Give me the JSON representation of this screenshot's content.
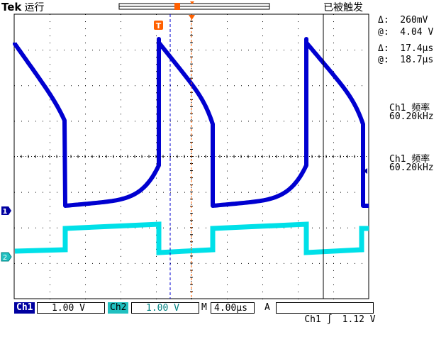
{
  "header": {
    "brand": "Tek",
    "run_state": "运行",
    "trigger_state": "已被触发"
  },
  "cursor_readouts": {
    "amplitude_delta": "Δ:  260mV",
    "amplitude_at": "@:  4.04 V",
    "time_delta": "Δ:  17.4µs",
    "time_at": "@:  18.7µs"
  },
  "measurements": [
    {
      "label": "Ch1 频率",
      "value": "60.20kHz"
    },
    {
      "label": "Ch1 频率",
      "value": "60.20kHz"
    }
  ],
  "channel_markers": {
    "ch1": "1",
    "ch2": "2",
    "trigger": "T"
  },
  "bottom": {
    "ch1_label": "Ch1",
    "ch1_scale": "1.00 V",
    "ch2_label": "Ch2",
    "ch2_scale": "1.00 V",
    "horiz_label": "M",
    "horiz_scale": "4.00µs",
    "trigger_mode": "A",
    "trigger_source": "Ch1",
    "trigger_slope": "∫",
    "trigger_level": "1.12 V"
  },
  "colors": {
    "ch1": "#0000d0",
    "ch2": "#00e0e8",
    "grid": "#000000",
    "trigger": "#ff6000"
  }
}
